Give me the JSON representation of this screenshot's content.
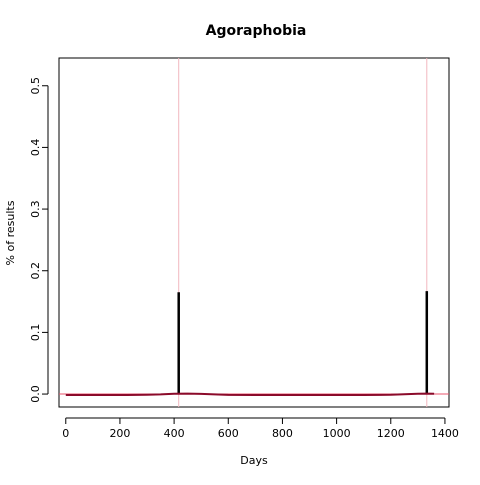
{
  "chart_data": {
    "type": "line",
    "title": "Agoraphobia",
    "xlabel": "Days",
    "ylabel": "% of results",
    "xlim": [
      -25,
      1415
    ],
    "ylim": [
      -0.021,
      0.545
    ],
    "x_ticks": [
      0,
      200,
      400,
      600,
      800,
      1000,
      1200,
      1400
    ],
    "x_tick_labels": [
      "0",
      "200",
      "400",
      "600",
      "800",
      "1000",
      "1200",
      "1400"
    ],
    "y_ticks": [
      0.0,
      0.1,
      0.2,
      0.3,
      0.4,
      0.5
    ],
    "y_tick_labels": [
      "0.0",
      "0.1",
      "0.2",
      "0.3",
      "0.4",
      "0.5"
    ],
    "grid": false,
    "legend": "none",
    "series": [
      {
        "kind": "spikes",
        "color": "#000000",
        "x": [
          417,
          1333
        ],
        "values": [
          0.165,
          0.167
        ]
      },
      {
        "kind": "smoothed-line",
        "color": "#8b0a2a",
        "x": [
          0,
          100,
          200,
          300,
          350,
          400,
          450,
          500,
          550,
          600,
          700,
          800,
          900,
          1000,
          1100,
          1200,
          1250,
          1300,
          1333,
          1360
        ],
        "values": [
          -0.0015,
          -0.0015,
          -0.0015,
          -0.0012,
          -0.0005,
          0.0005,
          0.0008,
          0.0003,
          -0.0006,
          -0.0013,
          -0.0015,
          -0.0015,
          -0.0015,
          -0.0015,
          -0.0015,
          -0.0012,
          -0.0002,
          0.0006,
          0.0007,
          0.0004
        ]
      }
    ],
    "reference_lines": [
      {
        "orientation": "horizontal",
        "y": 0.0,
        "color": "#e8556e"
      },
      {
        "orientation": "vertical",
        "x": 417,
        "color": "#f2b8bf"
      },
      {
        "orientation": "vertical",
        "x": 1333,
        "color": "#f2b8bf"
      }
    ]
  }
}
